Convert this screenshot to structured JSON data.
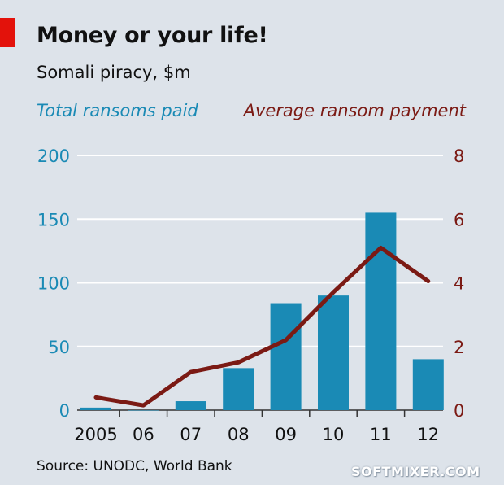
{
  "header": {
    "title": "Money or your life!",
    "subtitle": "Somali piracy, $m"
  },
  "legend": {
    "left": "Total ransoms paid",
    "right": "Average ransom payment"
  },
  "footer": {
    "source": "Source: UNODC, World Bank",
    "watermark": "SOFTMIXER.COM"
  },
  "colors": {
    "background": "#dde3ea",
    "bars": "#1a8ab5",
    "line": "#7b1a14",
    "accent": "#e3120b",
    "grid": "#ffffff"
  },
  "chart_data": {
    "type": "bar",
    "categories": [
      "2005",
      "06",
      "07",
      "08",
      "09",
      "10",
      "11",
      "12"
    ],
    "series": [
      {
        "name": "Total ransoms paid",
        "type": "bar",
        "axis": "left",
        "values": [
          2,
          0,
          7,
          33,
          84,
          90,
          155,
          40
        ]
      },
      {
        "name": "Average ransom payment",
        "type": "line",
        "axis": "right",
        "values": [
          0.4,
          0.15,
          1.2,
          1.5,
          2.2,
          3.7,
          5.1,
          4.05
        ]
      }
    ],
    "yleft": {
      "lim": [
        0,
        200
      ],
      "ticks": [
        "0",
        "50",
        "100",
        "150",
        "200"
      ]
    },
    "yright": {
      "lim": [
        0,
        8
      ],
      "ticks": [
        "0",
        "2",
        "4",
        "6",
        "8"
      ]
    },
    "grid": true
  }
}
